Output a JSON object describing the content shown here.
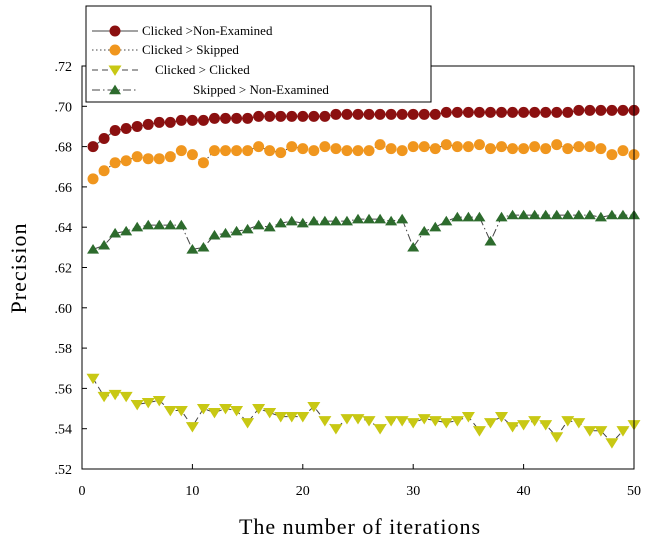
{
  "chart_data": {
    "type": "line",
    "xlabel": "The number of iterations",
    "ylabel": "Precision",
    "xlim": [
      0,
      50
    ],
    "ylim": [
      0.52,
      0.72
    ],
    "x_ticks": [
      0,
      10,
      20,
      30,
      40,
      50
    ],
    "x_tick_labels": [
      "0",
      "10",
      "20",
      "30",
      "40",
      "50"
    ],
    "y_ticks": [
      0.52,
      0.54,
      0.56,
      0.58,
      0.6,
      0.62,
      0.64,
      0.66,
      0.68,
      0.7,
      0.72
    ],
    "y_tick_labels": [
      ".52",
      ".54",
      ".56",
      ".58",
      ".60",
      ".62",
      ".64",
      ".66",
      ".68",
      ".70",
      ".72"
    ],
    "grid": false,
    "legend_position": "top-left",
    "x": [
      1,
      2,
      3,
      4,
      5,
      6,
      7,
      8,
      9,
      10,
      11,
      12,
      13,
      14,
      15,
      16,
      17,
      18,
      19,
      20,
      21,
      22,
      23,
      24,
      25,
      26,
      27,
      28,
      29,
      30,
      31,
      32,
      33,
      34,
      35,
      36,
      37,
      38,
      39,
      40,
      41,
      42,
      43,
      44,
      45,
      46,
      47,
      48,
      49,
      50
    ],
    "series": [
      {
        "name": "Clicked >Non-Examined",
        "color": "#8b1010",
        "marker": "circle",
        "line_style": "solid",
        "values": [
          0.68,
          0.684,
          0.688,
          0.689,
          0.69,
          0.691,
          0.692,
          0.692,
          0.693,
          0.693,
          0.693,
          0.694,
          0.694,
          0.694,
          0.694,
          0.695,
          0.695,
          0.695,
          0.695,
          0.695,
          0.695,
          0.695,
          0.696,
          0.696,
          0.696,
          0.696,
          0.696,
          0.696,
          0.696,
          0.696,
          0.696,
          0.696,
          0.697,
          0.697,
          0.697,
          0.697,
          0.697,
          0.697,
          0.697,
          0.697,
          0.697,
          0.697,
          0.697,
          0.697,
          0.698,
          0.698,
          0.698,
          0.698,
          0.698,
          0.698
        ]
      },
      {
        "name": "Clicked > Skipped",
        "color": "#f0961e",
        "marker": "circle",
        "line_style": "dotted",
        "values": [
          0.664,
          0.668,
          0.672,
          0.673,
          0.675,
          0.674,
          0.674,
          0.675,
          0.678,
          0.676,
          0.672,
          0.678,
          0.678,
          0.678,
          0.678,
          0.68,
          0.678,
          0.677,
          0.68,
          0.679,
          0.678,
          0.68,
          0.679,
          0.678,
          0.678,
          0.678,
          0.681,
          0.679,
          0.678,
          0.68,
          0.68,
          0.679,
          0.681,
          0.68,
          0.68,
          0.681,
          0.679,
          0.68,
          0.679,
          0.679,
          0.68,
          0.679,
          0.681,
          0.679,
          0.68,
          0.68,
          0.679,
          0.676,
          0.678,
          0.676
        ]
      },
      {
        "name": "Clicked > Clicked",
        "color": "#c8c814",
        "marker": "triangle-down",
        "line_style": "dashed",
        "values": [
          0.565,
          0.556,
          0.557,
          0.556,
          0.552,
          0.553,
          0.554,
          0.549,
          0.549,
          0.541,
          0.55,
          0.548,
          0.55,
          0.549,
          0.543,
          0.55,
          0.548,
          0.546,
          0.546,
          0.546,
          0.551,
          0.544,
          0.54,
          0.545,
          0.545,
          0.544,
          0.54,
          0.544,
          0.544,
          0.543,
          0.545,
          0.544,
          0.543,
          0.544,
          0.546,
          0.539,
          0.543,
          0.546,
          0.541,
          0.542,
          0.544,
          0.542,
          0.536,
          0.544,
          0.543,
          0.539,
          0.539,
          0.533,
          0.539,
          0.542
        ]
      },
      {
        "name": "Skipped > Non-Examined",
        "color": "#2d6b2d",
        "marker": "triangle-up",
        "line_style": "dash-dot",
        "values": [
          0.629,
          0.631,
          0.637,
          0.638,
          0.64,
          0.641,
          0.641,
          0.641,
          0.641,
          0.629,
          0.63,
          0.636,
          0.637,
          0.638,
          0.639,
          0.641,
          0.64,
          0.642,
          0.643,
          0.642,
          0.643,
          0.643,
          0.643,
          0.643,
          0.644,
          0.644,
          0.644,
          0.643,
          0.644,
          0.63,
          0.638,
          0.64,
          0.643,
          0.645,
          0.645,
          0.645,
          0.633,
          0.645,
          0.646,
          0.646,
          0.646,
          0.646,
          0.646,
          0.646,
          0.646,
          0.646,
          0.645,
          0.646,
          0.646,
          0.646
        ]
      }
    ]
  }
}
